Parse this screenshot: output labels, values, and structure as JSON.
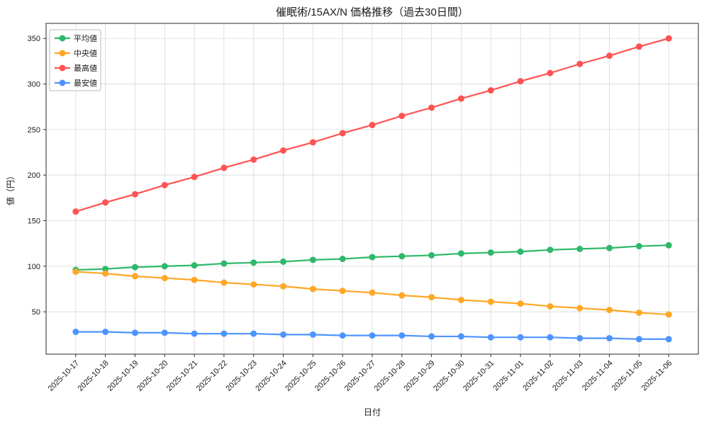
{
  "chart_data": {
    "type": "line",
    "title": "催眠術/15AX/N 価格推移（過去30日間）",
    "xlabel": "日付",
    "ylabel": "値（円）",
    "x": [
      "2025-10-17",
      "2025-10-18",
      "2025-10-19",
      "2025-10-20",
      "2025-10-21",
      "2025-10-22",
      "2025-10-23",
      "2025-10-24",
      "2025-10-25",
      "2025-10-26",
      "2025-10-27",
      "2025-10-28",
      "2025-10-29",
      "2025-10-30",
      "2025-10-31",
      "2025-11-01",
      "2025-11-02",
      "2025-11-03",
      "2025-11-04",
      "2025-11-05",
      "2025-11-06"
    ],
    "series": [
      {
        "name": "平均値",
        "color": "#2eb86a",
        "values": [
          96,
          97,
          99,
          100,
          101,
          103,
          104,
          105,
          107,
          108,
          110,
          111,
          112,
          114,
          115,
          116,
          118,
          119,
          120,
          122,
          123
        ]
      },
      {
        "name": "中央値",
        "color": "#ffa726",
        "values": [
          94,
          92,
          89,
          87,
          85,
          82,
          80,
          78,
          75,
          73,
          71,
          68,
          66,
          63,
          61,
          59,
          56,
          54,
          52,
          49,
          47
        ]
      },
      {
        "name": "最高値",
        "color": "#ff5252",
        "values": [
          160,
          170,
          179,
          189,
          198,
          208,
          217,
          227,
          236,
          246,
          255,
          265,
          274,
          284,
          293,
          303,
          312,
          322,
          331,
          341,
          350
        ]
      },
      {
        "name": "最安値",
        "color": "#4d94ff",
        "values": [
          28,
          28,
          27,
          27,
          26,
          26,
          26,
          25,
          25,
          24,
          24,
          24,
          23,
          23,
          22,
          22,
          22,
          21,
          21,
          20,
          20
        ]
      }
    ],
    "yticks": [
      50,
      100,
      150,
      200,
      250,
      300,
      350
    ],
    "ylim": [
      3.5,
      366.5
    ],
    "xlim": [
      -1,
      21
    ],
    "grid": true,
    "legend_position": "upper-left",
    "marker": "circle"
  }
}
